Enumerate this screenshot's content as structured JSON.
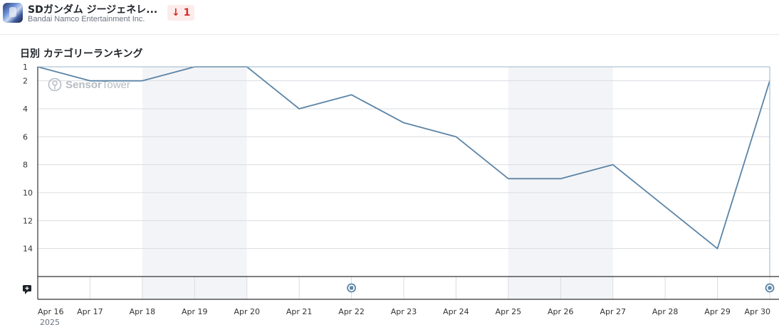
{
  "app": {
    "title": "SDガンダム ジージェネレ...",
    "developer": "Bandai Namco Entertainment Inc.",
    "rank_change": "1",
    "icon": "game-app-icon"
  },
  "chart_data": {
    "type": "line",
    "title": "日別 カテゴリーランキング",
    "x": [
      "Apr 16",
      "Apr 17",
      "Apr 18",
      "Apr 19",
      "Apr 20",
      "Apr 21",
      "Apr 22",
      "Apr 23",
      "Apr 24",
      "Apr 25",
      "Apr 26",
      "Apr 27",
      "Apr 28",
      "Apr 29",
      "Apr 30"
    ],
    "x_sublabel": "2025",
    "series": [
      {
        "values": [
          1,
          2,
          2,
          1,
          1,
          4,
          3,
          5,
          6,
          9,
          9,
          8,
          11,
          14,
          2
        ],
        "color": "#5b84a6"
      }
    ],
    "y_ticks": [
      1,
      2,
      4,
      6,
      8,
      10,
      12,
      14
    ],
    "ylim": [
      1,
      16
    ],
    "y_inverted": true,
    "shaded_x_ranges": [
      [
        "Apr 18",
        "Apr 20"
      ],
      [
        "Apr 25",
        "Apr 27"
      ]
    ],
    "event_markers": [
      "Apr 22",
      "Apr 30"
    ],
    "watermark": {
      "bold": "Sensor",
      "light": "Tower"
    },
    "grid": true
  }
}
